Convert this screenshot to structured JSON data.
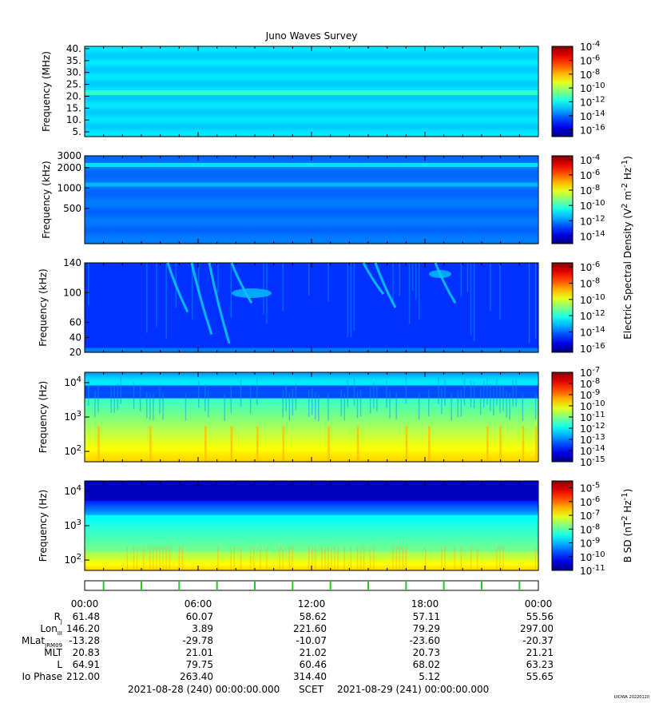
{
  "title": "Juno Waves Survey",
  "colorbar_label_electric": "Electric Spectral Density (V2 m-2 Hz-1)",
  "colorbar_label_electric_parts": {
    "main": "Electric Spectral Density (V",
    "sup1": "2",
    "mid": " m",
    "sup2": "-2",
    "mid2": " Hz",
    "sup3": "-1",
    "end": ")"
  },
  "colorbar_label_magnetic_parts": {
    "main": "B SD (nT",
    "sup1": "2",
    "mid": " Hz",
    "sup2": "-1",
    "end": ")"
  },
  "footer": {
    "start": "2021-08-28 (240) 00:00:00.000",
    "scet": "SCET",
    "end": "2021-08-29 (241) 00:00:00.000",
    "credit": "UIOWA 20220120"
  },
  "chart_data": [
    {
      "type": "heatmap",
      "panel": "HFR high",
      "ylabel": "Frequency (MHz)",
      "yticks": [
        "40.",
        "35.",
        "30.",
        "25.",
        "20.",
        "15.",
        "10.",
        "5."
      ],
      "ylim": [
        3,
        41
      ],
      "colorbar_ticks": [
        {
          "base": "10",
          "exp": "-4"
        },
        {
          "base": "10",
          "exp": "-6"
        },
        {
          "base": "10",
          "exp": "-8"
        },
        {
          "base": "10",
          "exp": "-10"
        },
        {
          "base": "10",
          "exp": "-12"
        },
        {
          "base": "10",
          "exp": "-14"
        },
        {
          "base": "10",
          "exp": "-16"
        }
      ],
      "colorbar_range": [
        -17,
        -4
      ],
      "features": [
        {
          "band_mhz": [
            20.5,
            22.5
          ],
          "log_level": -11.5
        }
      ]
    },
    {
      "type": "heatmap",
      "panel": "HFR low",
      "ylabel": "Frequency (kHz)",
      "yticks": [
        "3000",
        "2000",
        "1000",
        "500"
      ],
      "ylim": [
        150,
        3000
      ],
      "colorbar_ticks": [
        {
          "base": "10",
          "exp": "-4"
        },
        {
          "base": "10",
          "exp": "-6"
        },
        {
          "base": "10",
          "exp": "-8"
        },
        {
          "base": "10",
          "exp": "-10"
        },
        {
          "base": "10",
          "exp": "-12"
        },
        {
          "base": "10",
          "exp": "-14"
        }
      ],
      "colorbar_range": [
        -15,
        -3.5
      ],
      "features": [
        {
          "band_khz": [
            2050,
            2350
          ],
          "log_level": -11
        },
        {
          "band_khz": [
            1050,
            1200
          ],
          "log_level": -11.5
        }
      ]
    },
    {
      "type": "heatmap",
      "panel": "LFR high",
      "ylabel": "Frequency (kHz)",
      "yticks": [
        "140",
        "100",
        "60",
        "40",
        "20"
      ],
      "ylim": [
        20,
        140
      ],
      "colorbar_ticks": [
        {
          "base": "10",
          "exp": "-6"
        },
        {
          "base": "10",
          "exp": "-8"
        },
        {
          "base": "10",
          "exp": "-10"
        },
        {
          "base": "10",
          "exp": "-12"
        },
        {
          "base": "10",
          "exp": "-14"
        },
        {
          "base": "10",
          "exp": "-16"
        }
      ],
      "colorbar_range": [
        -16.5,
        -5.5
      ]
    },
    {
      "type": "heatmap",
      "panel": "LFR low",
      "ylabel": "Frequency (Hz)",
      "yticks": [
        {
          "base": "10",
          "exp": "4"
        },
        {
          "base": "10",
          "exp": "3"
        },
        {
          "base": "10",
          "exp": "2"
        }
      ],
      "ylim": [
        50,
        20000
      ],
      "colorbar_ticks": [
        {
          "base": "10",
          "exp": "-7"
        },
        {
          "base": "10",
          "exp": "-8"
        },
        {
          "base": "10",
          "exp": "-9"
        },
        {
          "base": "10",
          "exp": "-10"
        },
        {
          "base": "10",
          "exp": "-11"
        },
        {
          "base": "10",
          "exp": "-12"
        },
        {
          "base": "10",
          "exp": "-13"
        },
        {
          "base": "10",
          "exp": "-14"
        },
        {
          "base": "10",
          "exp": "-15"
        }
      ],
      "colorbar_range": [
        -15,
        -7
      ]
    },
    {
      "type": "heatmap",
      "panel": "Magnetic",
      "ylabel": "Frequency (Hz)",
      "yticks": [
        {
          "base": "10",
          "exp": "4"
        },
        {
          "base": "10",
          "exp": "3"
        },
        {
          "base": "10",
          "exp": "2"
        }
      ],
      "ylim": [
        50,
        20000
      ],
      "colorbar_ticks": [
        {
          "base": "10",
          "exp": "-5"
        },
        {
          "base": "10",
          "exp": "-6"
        },
        {
          "base": "10",
          "exp": "-7"
        },
        {
          "base": "10",
          "exp": "-8"
        },
        {
          "base": "10",
          "exp": "-9"
        },
        {
          "base": "10",
          "exp": "-10"
        },
        {
          "base": "10",
          "exp": "-11"
        }
      ],
      "colorbar_range": [
        -11,
        -4.5
      ]
    }
  ],
  "time_axis": {
    "labels": [
      "00:00",
      "06:00",
      "12:00",
      "18:00",
      "00:00"
    ],
    "hours": [
      0,
      6,
      12,
      18,
      24
    ]
  },
  "ephemeris": [
    {
      "label": "R",
      "sub": "J",
      "values": [
        "61.48",
        "60.07",
        "58.62",
        "57.11",
        "55.56"
      ]
    },
    {
      "label": "Lon",
      "sub": "III",
      "values": [
        "146.20",
        "3.89",
        "221.60",
        "79.29",
        "297.00"
      ]
    },
    {
      "label": "MLat",
      "sub": "JRM09",
      "values": [
        "-13.28",
        "-29.78",
        "-10.07",
        "-23.60",
        "-20.37"
      ]
    },
    {
      "label": "MLT",
      "sub": "",
      "values": [
        "20.83",
        "21.01",
        "21.02",
        "20.73",
        "21.21"
      ]
    },
    {
      "label": "L",
      "sub": "",
      "values": [
        "64.91",
        "79.75",
        "60.46",
        "68.02",
        "63.23"
      ]
    },
    {
      "label": "Io Phase",
      "sub": "",
      "values": [
        "212.00",
        "263.40",
        "314.40",
        "5.12",
        "55.65"
      ]
    }
  ]
}
